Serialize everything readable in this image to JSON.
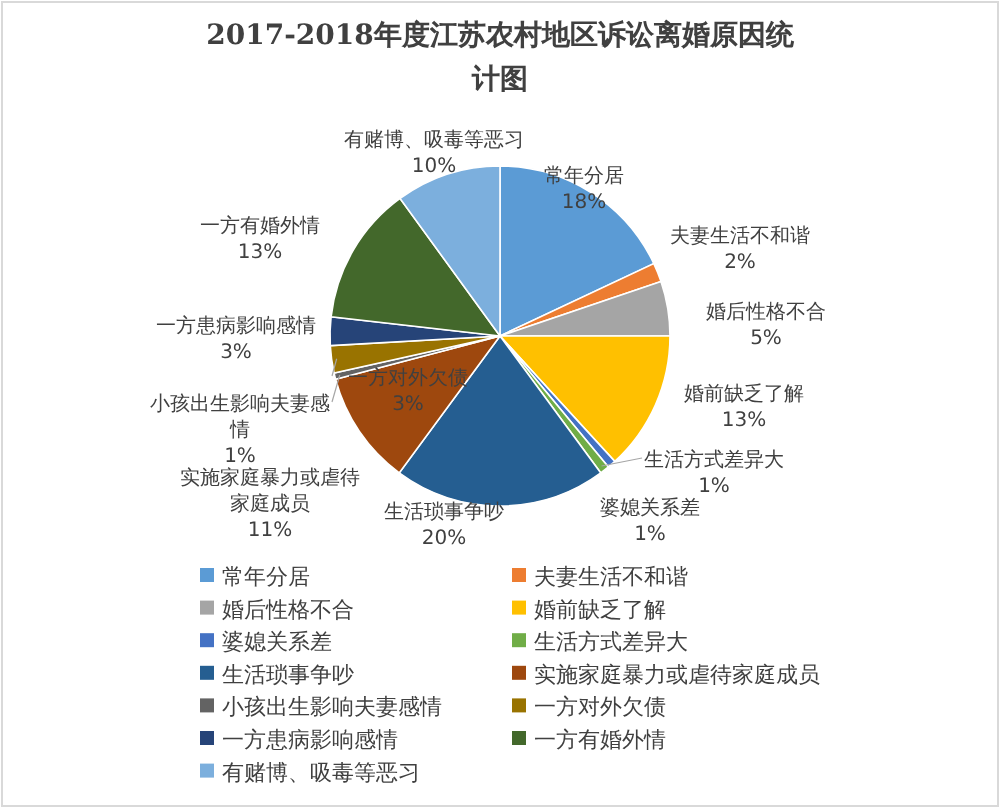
{
  "chart_data": {
    "type": "pie",
    "title": "2017-2018年度江苏农村地区诉讼离婚原因统计图",
    "categories": [
      "常年分居",
      "夫妻生活不和谐",
      "婚后性格不合",
      "婚前缺乏了解",
      "婆媳关系差",
      "生活方式差异大",
      "生活琐事争吵",
      "实施家庭暴力或虐待家庭成员",
      "小孩出生影响夫妻感情",
      "一方对外欠债",
      "一方患病影响感情",
      "一方有婚外情",
      "有赌博、吸毒等恶习"
    ],
    "values": [
      18.0,
      1.8,
      5.2,
      13.2,
      0.8,
      0.9,
      20.2,
      10.8,
      0.6,
      2.6,
      2.7,
      13.2,
      10.0
    ],
    "value_labels": [
      "18%",
      "2%",
      "5%",
      "13%",
      "1%",
      "1%",
      "20%",
      "11%",
      "1%",
      "3%",
      "3%",
      "13%",
      "10%"
    ],
    "colors": [
      "#5b9bd5",
      "#ed7d31",
      "#a5a5a5",
      "#ffc000",
      "#4472c4",
      "#70ad47",
      "#255e91",
      "#9e480e",
      "#636363",
      "#997300",
      "#264478",
      "#43682b",
      "#7cafdd"
    ],
    "legend": "bottom"
  }
}
